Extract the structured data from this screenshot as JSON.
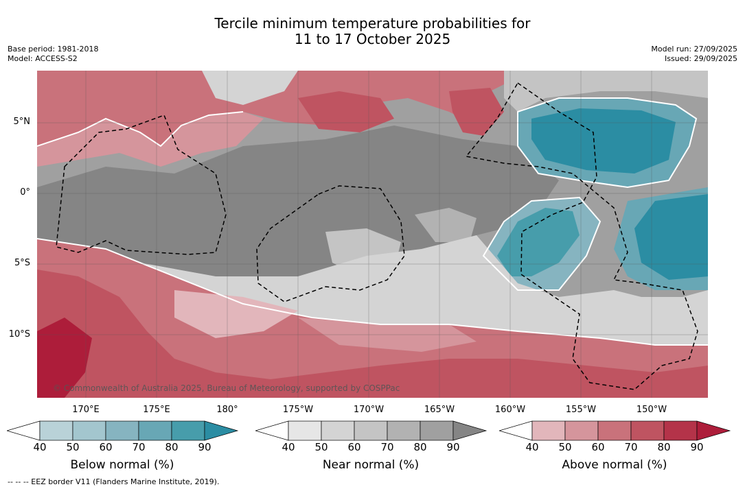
{
  "title": {
    "line1": "Tercile minimum temperature probabilities for",
    "line2": "11 to 17 October 2025"
  },
  "meta": {
    "base_period": "Base period: 1981-2018",
    "model": "Model: ACCESS-S2",
    "model_run": "Model run: 27/09/2025",
    "issued": "Issued: 29/09/2025"
  },
  "map": {
    "latitude_labels": [
      "5°N",
      "0°",
      "5°S",
      "10°S"
    ],
    "longitude_labels": [
      "170°E",
      "175°E",
      "180°",
      "175°W",
      "170°W",
      "165°W",
      "160°W",
      "155°W",
      "150°W"
    ],
    "copyright": "© Commonwealth of Australia 2025, Bureau of Meteorology, supported by COSPPac"
  },
  "colorbars": [
    {
      "label": "Below normal (%)",
      "ticks": [
        "40",
        "50",
        "60",
        "70",
        "80",
        "90"
      ],
      "colors": [
        "#ffffff",
        "#b9d2d8",
        "#a3c6ce",
        "#86b4c0",
        "#68a7b5",
        "#479dab",
        "#2b8da3"
      ]
    },
    {
      "label": "Near normal (%)",
      "ticks": [
        "40",
        "50",
        "60",
        "70",
        "80",
        "90"
      ],
      "colors": [
        "#ffffff",
        "#e6e6e6",
        "#d4d4d4",
        "#c4c4c4",
        "#b2b2b2",
        "#a0a0a0",
        "#858585"
      ]
    },
    {
      "label": "Above normal (%)",
      "ticks": [
        "40",
        "50",
        "60",
        "70",
        "80",
        "90"
      ],
      "colors": [
        "#ffffff",
        "#e2b6bb",
        "#d5959c",
        "#c9727b",
        "#bf5461",
        "#b43349",
        "#ad1d3a"
      ]
    }
  ],
  "footnote": "--  --  -- EEZ border V11 (Flanders Marine Institute, 2019)."
}
